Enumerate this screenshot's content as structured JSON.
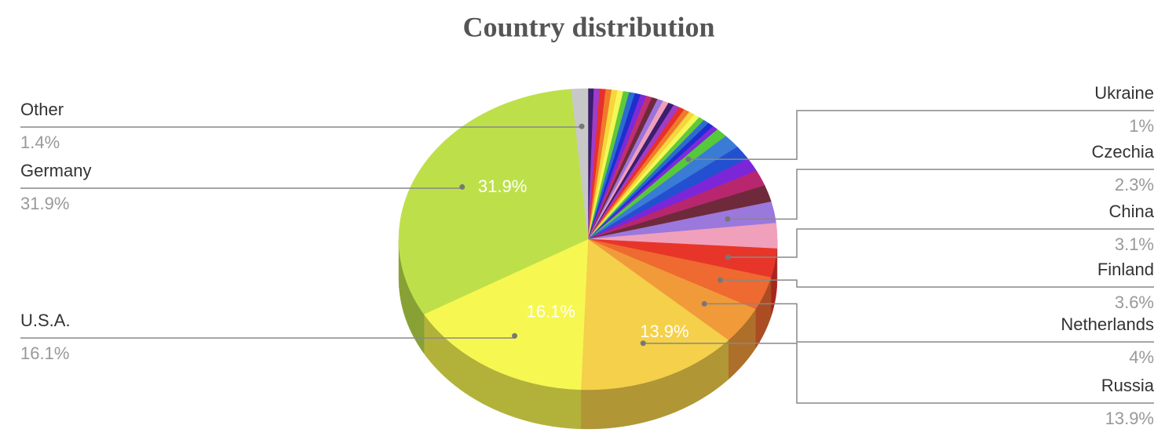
{
  "chart_data": {
    "type": "pie",
    "title": "Country distribution",
    "categories": [
      null,
      null,
      null,
      null,
      null,
      null,
      null,
      null,
      null,
      null,
      null,
      null,
      null,
      null,
      null,
      null,
      null,
      null,
      null,
      null,
      null,
      null,
      null,
      null,
      "Ukraine",
      null,
      null,
      null,
      null,
      null,
      "Czechia",
      null,
      "China",
      "Finland",
      "Netherlands",
      "Russia",
      "U.S.A.",
      "Germany",
      "Other"
    ],
    "values": [
      0.5,
      0.5,
      0.5,
      0.5,
      0.5,
      0.5,
      0.5,
      0.5,
      0.5,
      0.5,
      0.5,
      0.5,
      0.5,
      0.5,
      0.5,
      0.5,
      0.5,
      0.5,
      0.5,
      0.5,
      0.5,
      0.5,
      0.5,
      0.5,
      1,
      1.5,
      1.5,
      1.5,
      1.7,
      1.8,
      2.3,
      2.7,
      3.1,
      3.6,
      4,
      13.9,
      16.1,
      31.9,
      1.4
    ],
    "value_labels": [
      null,
      null,
      null,
      null,
      null,
      null,
      null,
      null,
      null,
      null,
      null,
      null,
      null,
      null,
      null,
      null,
      null,
      null,
      null,
      null,
      null,
      null,
      null,
      null,
      "1%",
      null,
      null,
      null,
      null,
      null,
      "2.3%",
      null,
      "3.1%",
      "3.6%",
      "4%",
      "13.9%",
      "16.1%",
      "31.9%",
      "1.4%"
    ],
    "colors": [
      "#3b1e6e",
      "#a03cc8",
      "#e8302a",
      "#f07a2a",
      "#f5d63c",
      "#f4f758",
      "#5fc93a",
      "#2a6cd0",
      "#1e2ecf",
      "#7d2ad8",
      "#c0306e",
      "#6e2a3c",
      "#9b73dc",
      "#ef9fbb",
      "#3b1e6e",
      "#a03cc8",
      "#e8302a",
      "#f07a2a",
      "#f5d63c",
      "#f4f758",
      "#5fc93a",
      "#2a6cd0",
      "#1e2ecf",
      "#7d2ad8",
      "#56c83c",
      "#3a7bd5",
      "#2350d0",
      "#7c26d8",
      "#b8266e",
      "#6e2a3a",
      "#9b78dc",
      "#f0a0bb",
      "#e8352a",
      "#ee6a30",
      "#f19a3a",
      "#f5d04a",
      "#f7f752",
      "#bde04a",
      "#c8c8c8"
    ]
  }
}
